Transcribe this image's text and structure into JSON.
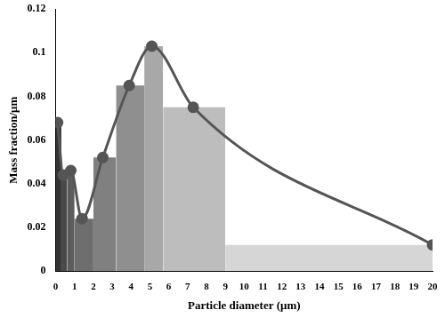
{
  "chart_data": {
    "type": "histogram",
    "xlabel": "Particle diameter (μm)",
    "ylabel": "Mass fraction/μm",
    "bins": [
      0,
      0.3,
      0.6,
      1.0,
      2.0,
      3.2,
      4.7,
      5.7,
      9,
      20
    ],
    "values": [
      0.068,
      0.044,
      0.046,
      0.024,
      0.052,
      0.085,
      0.103,
      0.075,
      0.012
    ],
    "colors": [
      "#333333",
      "#4a4a4a",
      "#5c5c5c",
      "#6e6e6e",
      "#808080",
      "#8f8f8f",
      "#a8a8a8",
      "#bdbdbd",
      "#d6d6d6"
    ],
    "series": [
      {
        "type": "line",
        "color": "#555555",
        "marker": "circle",
        "line_style": "smooth",
        "x": [
          0.1,
          0.4,
          0.8,
          1.4,
          2.5,
          3.9,
          5.1,
          7.3,
          20
        ],
        "values": [
          0.068,
          0.044,
          0.046,
          0.024,
          0.052,
          0.085,
          0.103,
          0.075,
          0.012
        ]
      }
    ],
    "xlim": [
      0,
      20
    ],
    "xticks": [
      0,
      1,
      2,
      3,
      4,
      5,
      6,
      7,
      8,
      9,
      10,
      11,
      12,
      13,
      14,
      15,
      16,
      17,
      18,
      19,
      20
    ],
    "ylim": [
      0,
      0.12
    ],
    "yticks": [
      0,
      0.02,
      0.04,
      0.06,
      0.08,
      0.1,
      0.12
    ],
    "grid": false
  }
}
